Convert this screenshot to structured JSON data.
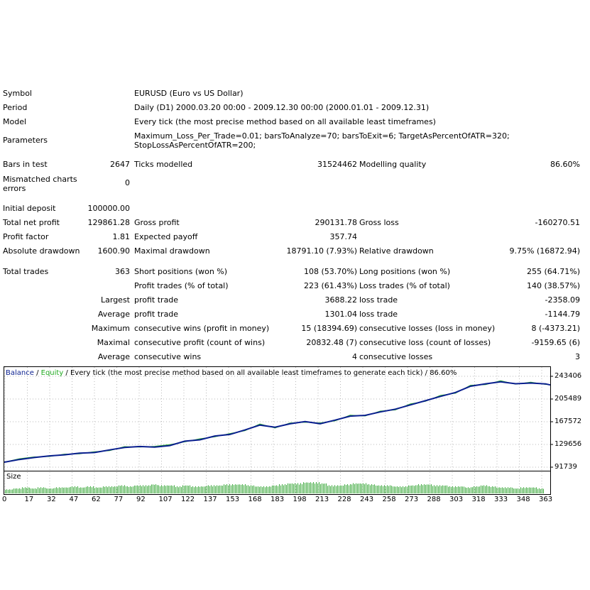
{
  "summary": {
    "symbol_label": "Symbol",
    "symbol_value": "EURUSD (Euro vs US Dollar)",
    "period_label": "Period",
    "period_value": "Daily (D1) 2000.03.20 00:00 - 2009.12.30 00:00 (2000.01.01 - 2009.12.31)",
    "model_label": "Model",
    "model_value": "Every tick (the most precise method based on all available least timeframes)",
    "params_label": "Parameters",
    "params_line1": "Maximum_Loss_Per_Trade=0.01; barsToAnalyze=70; barsToExit=6; TargetAsPercentOfATR=320;",
    "params_line2": "StopLossAsPercentOfATR=200;",
    "bars_label": "Bars in test",
    "bars_value": "2647",
    "ticks_label": "Ticks modelled",
    "ticks_value": "31524462",
    "quality_label": "Modelling quality",
    "quality_value": "86.60%",
    "mismatch_label1": "Mismatched charts",
    "mismatch_label2": "errors",
    "mismatch_value": "0",
    "deposit_label": "Initial deposit",
    "deposit_value": "100000.00",
    "netprofit_label": "Total net profit",
    "netprofit_value": "129861.28",
    "grossprofit_label": "Gross profit",
    "grossprofit_value": "290131.78",
    "grossloss_label": "Gross loss",
    "grossloss_value": "-160270.51",
    "pf_label": "Profit factor",
    "pf_value": "1.81",
    "payoff_label": "Expected payoff",
    "payoff_value": "357.74",
    "absdd_label": "Absolute drawdown",
    "absdd_value": "1600.90",
    "maxdd_label": "Maximal drawdown",
    "maxdd_value": "18791.10 (7.93%)",
    "reldd_label": "Relative drawdown",
    "reldd_value": "9.75% (16872.94)",
    "trades_label": "Total trades",
    "trades_value": "363",
    "short_label": "Short positions (won %)",
    "short_value": "108 (53.70%)",
    "long_label": "Long positions (won %)",
    "long_value": "255 (64.71%)",
    "ptrades_label": "Profit trades (% of total)",
    "ptrades_value": "223 (61.43%)",
    "ltrades_label": "Loss trades (% of total)",
    "ltrades_value": "140 (38.57%)",
    "largest_label": "Largest",
    "largest_profit_label": "profit trade",
    "largest_profit_value": "3688.22",
    "largest_loss_label": "loss trade",
    "largest_loss_value": "-2358.09",
    "average_label": "Average",
    "average_profit_label": "profit trade",
    "average_profit_value": "1301.04",
    "average_loss_label": "loss trade",
    "average_loss_value": "-1144.79",
    "maximum_label": "Maximum",
    "max_wins_label": "consecutive wins (profit in money)",
    "max_wins_value": "15 (18394.69)",
    "max_losses_label": "consecutive losses (loss in money)",
    "max_losses_value": "8 (-4373.21)",
    "maximal_label": "Maximal",
    "maximal_profit_label": "consecutive profit (count of wins)",
    "maximal_profit_value": "20832.48 (7)",
    "maximal_loss_label": "consecutive loss (count of losses)",
    "maximal_loss_value": "-9159.65 (6)",
    "average2_label": "Average",
    "avg_wins_label": "consecutive wins",
    "avg_wins_value": "4",
    "avg_losses_label": "consecutive losses",
    "avg_losses_value": "3"
  },
  "chart_legend": {
    "balance": "Balance",
    "sep1": " / ",
    "equity": "Equity",
    "rest": " / Every tick (the most precise method based on all available least timeframes to generate each tick) / 86.60%"
  },
  "size_label": "Size",
  "colors": {
    "balance": "#0a1f8f",
    "equity": "#22aa22",
    "size_bars": "#39a839",
    "grid": "#b8b8b8"
  },
  "chart_data": {
    "type": "line",
    "y_ticks": [
      "243406",
      "205489",
      "167572",
      "129656",
      "91739"
    ],
    "x_ticks": [
      "0",
      "17",
      "32",
      "47",
      "62",
      "77",
      "92",
      "107",
      "122",
      "137",
      "153",
      "168",
      "183",
      "198",
      "213",
      "228",
      "243",
      "258",
      "273",
      "288",
      "303",
      "318",
      "333",
      "348",
      "363"
    ],
    "ylim": [
      91739,
      243406
    ],
    "xlim": [
      0,
      363
    ],
    "series": [
      {
        "name": "Balance",
        "x": [
          0,
          10,
          20,
          30,
          40,
          50,
          60,
          70,
          80,
          90,
          100,
          110,
          120,
          130,
          140,
          150,
          160,
          170,
          180,
          190,
          200,
          210,
          220,
          230,
          240,
          250,
          260,
          270,
          280,
          290,
          300,
          310,
          320,
          330,
          340,
          350,
          360,
          363
        ],
        "y": [
          100000,
          104500,
          107800,
          110600,
          112300,
          115200,
          116100,
          120500,
          124600,
          126200,
          125200,
          127800,
          135100,
          137400,
          143800,
          146400,
          153800,
          162000,
          158500,
          164100,
          167900,
          164200,
          170300,
          176900,
          178200,
          183900,
          188500,
          195700,
          202700,
          209900,
          216400,
          226800,
          230900,
          234200,
          231000,
          232100,
          230700,
          228900
        ]
      },
      {
        "name": "Equity",
        "x": [
          0,
          10,
          20,
          30,
          40,
          50,
          60,
          70,
          80,
          90,
          100,
          110,
          120,
          130,
          140,
          150,
          160,
          170,
          180,
          190,
          200,
          210,
          220,
          230,
          240,
          250,
          260,
          270,
          280,
          290,
          300,
          310,
          320,
          330,
          340,
          350,
          360,
          363
        ],
        "y": [
          100000,
          105800,
          108900,
          109500,
          113600,
          114000,
          117600,
          119400,
          126100,
          125300,
          126600,
          129400,
          133900,
          139100,
          142500,
          147900,
          152600,
          163800,
          157100,
          165500,
          166800,
          165700,
          169100,
          178500,
          177200,
          185400,
          187200,
          197400,
          201600,
          211600,
          215100,
          228500,
          229600,
          235900,
          230200,
          233600,
          229800,
          229400
        ]
      }
    ],
    "size_values": [
      4,
      5,
      6,
      5,
      6,
      5,
      6,
      6,
      7,
      6,
      7,
      6,
      7,
      7,
      8,
      7,
      8,
      8,
      9,
      8,
      8,
      7,
      8,
      7,
      7,
      8,
      8,
      9,
      9,
      9,
      8,
      7,
      7,
      8,
      9,
      10,
      10,
      11,
      11,
      10,
      8,
      8,
      9,
      10,
      10,
      9,
      8,
      8,
      7,
      7,
      8,
      9,
      9,
      8,
      8,
      7,
      7,
      6,
      7,
      8,
      7,
      6,
      6,
      5,
      6,
      6,
      5
    ]
  }
}
